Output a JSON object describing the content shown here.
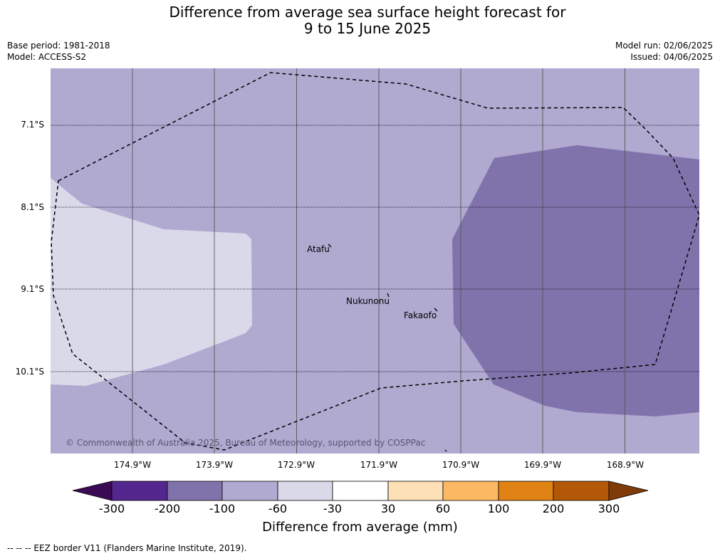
{
  "title": {
    "line1": "Difference from average sea surface height forecast for",
    "line2": "9 to 15 June 2025"
  },
  "meta_left": {
    "base_period": "Base period: 1981-2018",
    "model": "Model: ACCESS-S2"
  },
  "meta_right": {
    "model_run": "Model run: 02/06/2025",
    "issued": "Issued: 04/06/2025"
  },
  "lat_labels": [
    "7.1°S",
    "8.1°S",
    "9.1°S",
    "10.1°S"
  ],
  "lon_labels": [
    "174.9°W",
    "173.9°W",
    "172.9°W",
    "171.9°W",
    "170.9°W",
    "169.9°W",
    "168.9°W"
  ],
  "places": {
    "atafu": "Atafu",
    "nukunonu": "Nukunonu",
    "fakaofo": "Fakaofo"
  },
  "copyright": "© Commonwealth of Australia 2025, Bureau of Meteorology, supported by COSPPac",
  "colorbar": {
    "ticks": [
      "-300",
      "-200",
      "-100",
      "-60",
      "-30",
      "30",
      "60",
      "100",
      "200",
      "300"
    ],
    "colors": [
      "#3b0a55",
      "#54278f",
      "#8073ac",
      "#b0a9d0",
      "#d9d9ea",
      "#ffffff",
      "#fee0b6",
      "#fdb863",
      "#e08214",
      "#b35806",
      "#7f3b08"
    ],
    "title": "Difference from average (mm)"
  },
  "footnote": "--  --  -- EEZ border V11 (Flanders Marine Institute, 2019)."
}
